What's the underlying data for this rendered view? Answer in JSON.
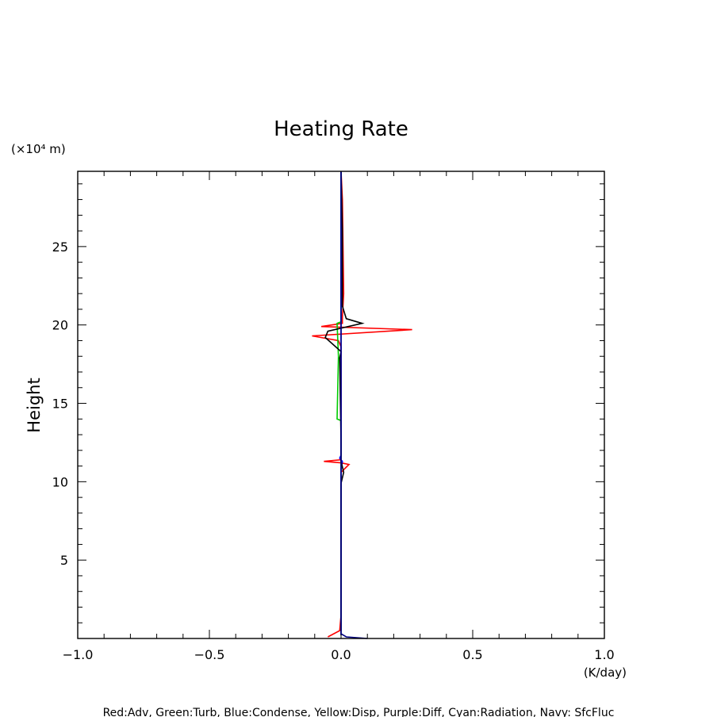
{
  "chart_data": {
    "type": "line",
    "title": "Heating Rate",
    "ylabel": "Height",
    "yunit": "(×10⁴ m)",
    "xunit": "(K/day)",
    "xlim": [
      -1.0,
      1.0
    ],
    "ylim": [
      0,
      29.8
    ],
    "xticks": [
      -1.0,
      -0.5,
      0.0,
      0.5,
      1.0
    ],
    "xtick_labels": [
      "−1.0",
      "−0.5",
      "0.0",
      "0.5",
      "1.0"
    ],
    "yticks": [
      5,
      10,
      15,
      20,
      25
    ],
    "ytick_labels": [
      "5",
      "10",
      "15",
      "20",
      "25"
    ],
    "grid": false,
    "footer": "Red:Adv, Green:Turb, Blue:Condense, Yellow:Disp, Purple:Diff, Cyan:Radiation, Navy: SfcFluc",
    "series": [
      {
        "color": "#ff0000",
        "points": [
          [
            -0.05,
            0.1
          ],
          [
            -0.005,
            0.5
          ],
          [
            0.0,
            1.5
          ],
          [
            0.0,
            10.6
          ],
          [
            0.03,
            11.1
          ],
          [
            0.0,
            11.2
          ],
          [
            -0.065,
            11.3
          ],
          [
            0.0,
            11.4
          ],
          [
            0.0,
            12.3
          ],
          [
            0.0,
            18.6
          ],
          [
            -0.01,
            19.0
          ],
          [
            -0.11,
            19.3
          ],
          [
            0.27,
            19.7
          ],
          [
            -0.075,
            19.9
          ],
          [
            0.005,
            20.1
          ],
          [
            0.005,
            20.5
          ],
          [
            0.01,
            22.0
          ],
          [
            0.005,
            28.0
          ],
          [
            0.0,
            29.8
          ]
        ]
      },
      {
        "color": "#00cc00",
        "points": [
          [
            0.0,
            0.5
          ],
          [
            0.0,
            13.9
          ],
          [
            -0.015,
            14.0
          ],
          [
            -0.01,
            18.0
          ],
          [
            -0.015,
            20.1
          ],
          [
            0.0,
            20.2
          ],
          [
            0.0,
            29.8
          ]
        ]
      },
      {
        "color": "#0000ff",
        "points": [
          [
            0.0,
            0.5
          ],
          [
            0.0,
            10.8
          ],
          [
            0.005,
            11.3
          ],
          [
            -0.005,
            11.5
          ],
          [
            0.0,
            11.7
          ],
          [
            0.0,
            29.8
          ]
        ]
      },
      {
        "color": "#000000",
        "points": [
          [
            0.0,
            0.2
          ],
          [
            0.0,
            9.9
          ],
          [
            0.01,
            10.6
          ],
          [
            0.0,
            11.3
          ],
          [
            0.0,
            12.5
          ],
          [
            -0.005,
            17.9
          ],
          [
            0.0,
            18.3
          ],
          [
            -0.06,
            19.2
          ],
          [
            -0.05,
            19.6
          ],
          [
            0.08,
            20.1
          ],
          [
            0.02,
            20.4
          ],
          [
            0.005,
            21.2
          ],
          [
            0.005,
            26.0
          ],
          [
            0.0,
            29.8
          ]
        ]
      },
      {
        "color": "#000080",
        "points": [
          [
            0.1,
            0.0
          ],
          [
            0.02,
            0.1
          ],
          [
            0.0,
            0.3
          ],
          [
            0.0,
            29.8
          ]
        ]
      }
    ]
  }
}
